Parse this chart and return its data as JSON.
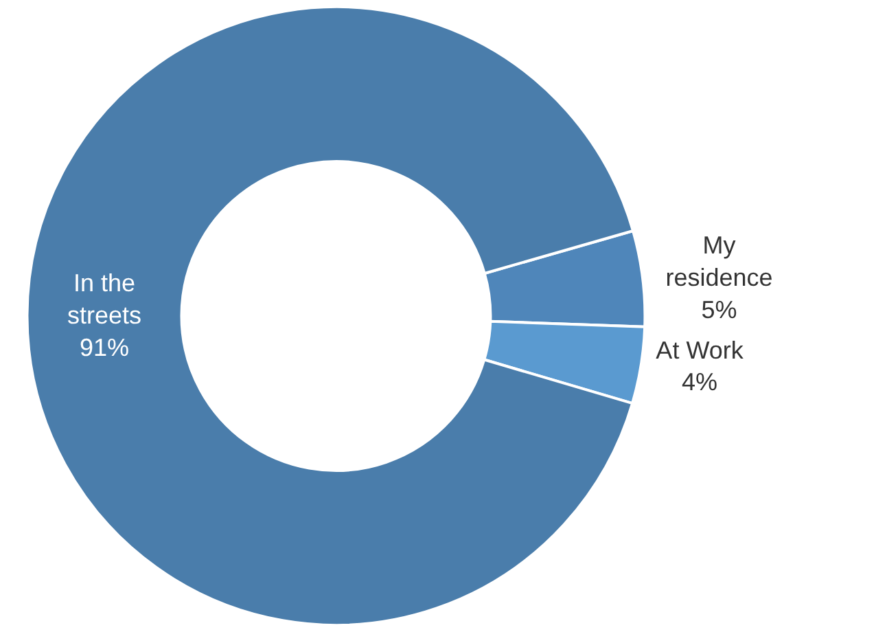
{
  "chart_data": {
    "type": "donut",
    "categories": [
      "My residence",
      "At Work",
      "In the streets"
    ],
    "values": [
      5,
      4,
      91
    ],
    "value_labels": [
      "5%",
      "4%",
      "91%"
    ],
    "colors": [
      "#4f86ba",
      "#5a9ad0",
      "#4a7dab"
    ],
    "legend": false
  }
}
